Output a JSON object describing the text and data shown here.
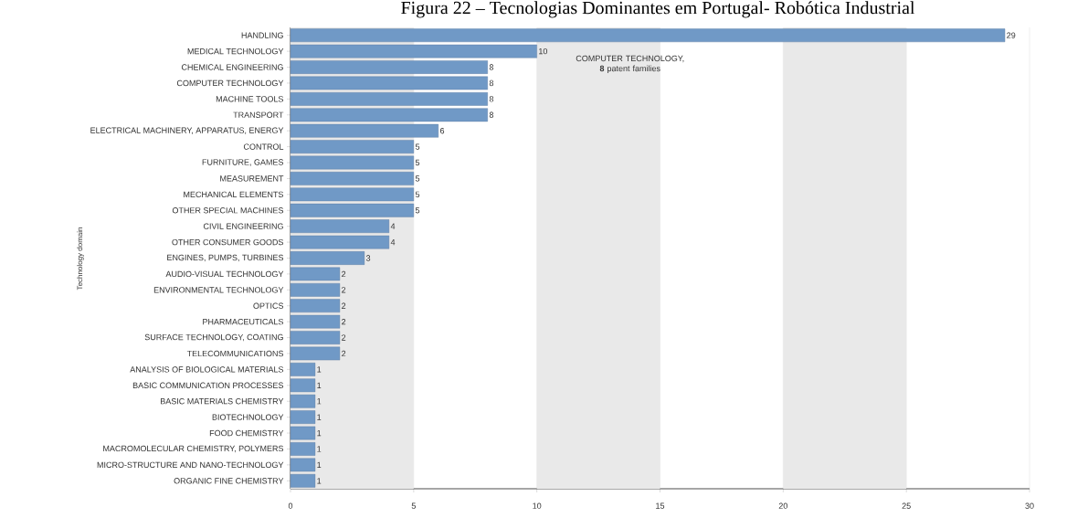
{
  "chart_data": {
    "type": "bar",
    "orientation": "horizontal",
    "title": "Figura 22 – Tecnologias Dominantes em Portugal- Robótica Industrial",
    "ylabel": "Technology domain",
    "categories": [
      "HANDLING",
      "MEDICAL TECHNOLOGY",
      "CHEMICAL ENGINEERING",
      "COMPUTER TECHNOLOGY",
      "MACHINE TOOLS",
      "TRANSPORT",
      "ELECTRICAL MACHINERY, APPARATUS, ENERGY",
      "CONTROL",
      "FURNITURE, GAMES",
      "MEASUREMENT",
      "MECHANICAL ELEMENTS",
      "OTHER SPECIAL MACHINES",
      "CIVIL ENGINEERING",
      "OTHER CONSUMER GOODS",
      "ENGINES, PUMPS, TURBINES",
      "AUDIO-VISUAL TECHNOLOGY",
      "ENVIRONMENTAL TECHNOLOGY",
      "OPTICS",
      "PHARMACEUTICALS",
      "SURFACE TECHNOLOGY, COATING",
      "TELECOMMUNICATIONS",
      "ANALYSIS OF BIOLOGICAL MATERIALS",
      "BASIC COMMUNICATION PROCESSES",
      "BASIC MATERIALS CHEMISTRY",
      "BIOTECHNOLOGY",
      "FOOD CHEMISTRY",
      "MACROMOLECULAR CHEMISTRY, POLYMERS",
      "MICRO-STRUCTURE AND NANO-TECHNOLOGY",
      "ORGANIC FINE CHEMISTRY"
    ],
    "values": [
      29,
      10,
      8,
      8,
      8,
      8,
      6,
      5,
      5,
      5,
      5,
      5,
      4,
      4,
      3,
      2,
      2,
      2,
      2,
      2,
      2,
      1,
      1,
      1,
      1,
      1,
      1,
      1,
      1
    ],
    "color": "#7099c6",
    "data_labels": true,
    "grid": "x",
    "xlim": [
      0,
      30
    ],
    "xticks": [
      0,
      5,
      10,
      15,
      20,
      25,
      30
    ],
    "bands": [
      {
        "axis": "x",
        "from": 0,
        "to": 5,
        "color": "#e9e9e9"
      },
      {
        "axis": "x",
        "from": 10,
        "to": 15,
        "color": "#e9e9e9"
      },
      {
        "axis": "x",
        "from": 20,
        "to": 25,
        "color": "#e9e9e9"
      }
    ],
    "annotations": [
      "COMPUTER TECHNOLOGY, **8** patent families"
    ]
  }
}
